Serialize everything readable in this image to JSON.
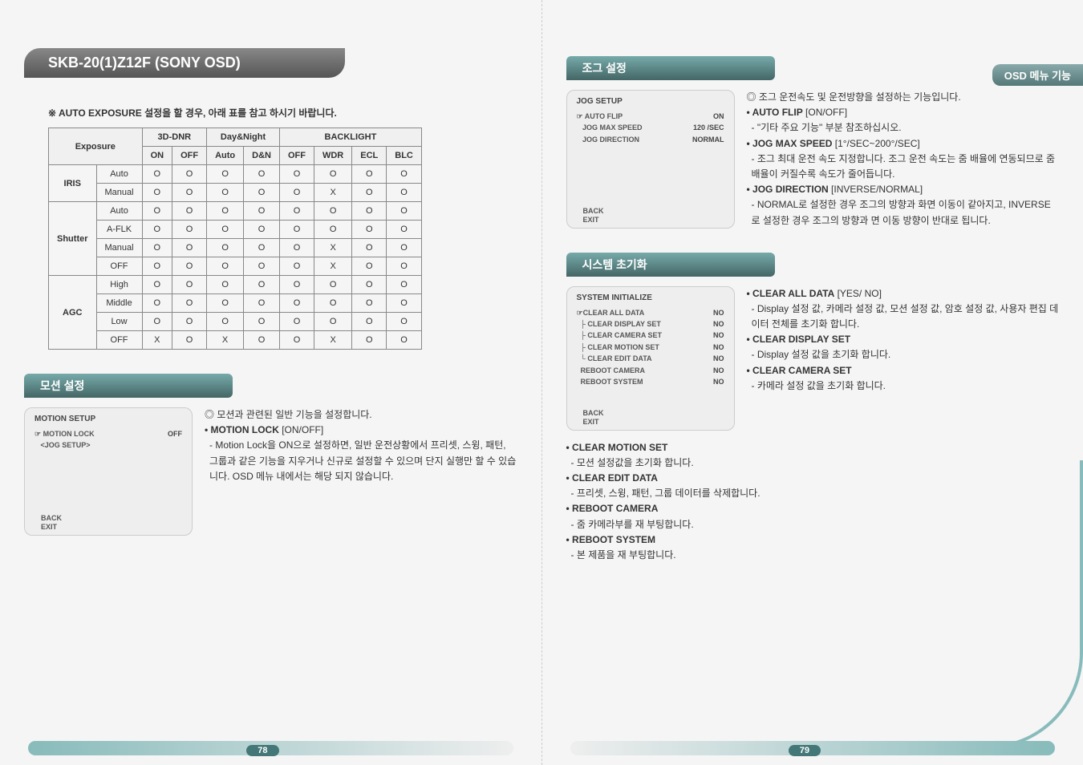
{
  "model_header": "SKB-20(1)Z12F  (SONY OSD)",
  "menu_tag": "OSD 메뉴 기능",
  "table_note": "※ AUTO EXPOSURE 설정을 할 경우, 아래 표를 참고 하시기 바랍니다.",
  "table": {
    "group_headers": [
      "3D-DNR",
      "Day&Night",
      "BACKLIGHT"
    ],
    "group_spans": [
      2,
      2,
      4
    ],
    "exposure_header": "Exposure",
    "sub_headers": [
      "ON",
      "OFF",
      "Auto",
      "D&N",
      "OFF",
      "WDR",
      "ECL",
      "BLC"
    ],
    "row_groups": [
      {
        "label": "IRIS",
        "rows": [
          {
            "k": "Auto",
            "v": [
              "O",
              "O",
              "O",
              "O",
              "O",
              "O",
              "O",
              "O"
            ]
          },
          {
            "k": "Manual",
            "v": [
              "O",
              "O",
              "O",
              "O",
              "O",
              "X",
              "O",
              "O"
            ]
          }
        ]
      },
      {
        "label": "Shutter",
        "rows": [
          {
            "k": "Auto",
            "v": [
              "O",
              "O",
              "O",
              "O",
              "O",
              "O",
              "O",
              "O"
            ]
          },
          {
            "k": "A-FLK",
            "v": [
              "O",
              "O",
              "O",
              "O",
              "O",
              "O",
              "O",
              "O"
            ]
          },
          {
            "k": "Manual",
            "v": [
              "O",
              "O",
              "O",
              "O",
              "O",
              "X",
              "O",
              "O"
            ]
          },
          {
            "k": "OFF",
            "v": [
              "O",
              "O",
              "O",
              "O",
              "O",
              "X",
              "O",
              "O"
            ]
          }
        ]
      },
      {
        "label": "AGC",
        "rows": [
          {
            "k": "High",
            "v": [
              "O",
              "O",
              "O",
              "O",
              "O",
              "O",
              "O",
              "O"
            ]
          },
          {
            "k": "Middle",
            "v": [
              "O",
              "O",
              "O",
              "O",
              "O",
              "O",
              "O",
              "O"
            ]
          },
          {
            "k": "Low",
            "v": [
              "O",
              "O",
              "O",
              "O",
              "O",
              "O",
              "O",
              "O"
            ]
          },
          {
            "k": "OFF",
            "v": [
              "X",
              "O",
              "X",
              "O",
              "O",
              "X",
              "O",
              "O"
            ]
          }
        ]
      }
    ]
  },
  "motion": {
    "title": "모션 설정",
    "osd_title": "MOTION SETUP",
    "items": [
      {
        "k": "☞ MOTION LOCK",
        "v": "OFF"
      },
      {
        "k": "   <JOG SETUP>",
        "v": ""
      }
    ],
    "back": "BACK",
    "exit": "EXIT",
    "desc_lead": "◎ 모션과 관련된 일반 기능을 설정합니다.",
    "desc_items": [
      {
        "bold": "• MOTION LOCK",
        "tail": " [ON/OFF]"
      },
      {
        "sub": " - Motion Lock을 ON으로 설정하면, 일반 운전상황에서 프리셋, 스윙, 패턴, 그룹과 같은 기능을 지우거나 신규로 설정할 수 있으며 단지 실행만 할 수 있습니다. OSD 메뉴 내에서는 해당 되지 않습니다."
      }
    ]
  },
  "jog": {
    "title": "조그 설정",
    "osd_title": "JOG SETUP",
    "items": [
      {
        "k": "☞ AUTO FLIP",
        "v": "ON"
      },
      {
        "k": "   JOG MAX SPEED",
        "v": "120 /SEC"
      },
      {
        "k": "   JOG DIRECTION",
        "v": "NORMAL"
      }
    ],
    "back": "BACK",
    "exit": "EXIT",
    "desc_lead": "◎ 조그 운전속도 및 운전방향을 설정하는 기능입니다.",
    "desc_items": [
      {
        "bold": "• AUTO FLIP",
        "tail": " [ON/OFF]"
      },
      {
        "sub": " - \"기타 주요 기능\" 부분 참조하십시오."
      },
      {
        "bold": "• JOG MAX SPEED",
        "tail": " [1°/SEC~200°/SEC]"
      },
      {
        "sub": " - 조그 최대 운전 속도 지정합니다. 조그 운전 속도는 줌 배율에 연동되므로 줌 배율이 커질수록 속도가 줄어듭니다."
      },
      {
        "bold": "• JOG DIRECTION",
        "tail": " [INVERSE/NORMAL]"
      },
      {
        "sub": " - NORMAL로 설정한 경우 조그의 방향과 화면 이동이 같아지고, INVERSE로 설정한 경우 조그의 방향과 면 이동 방향이 반대로 됩니다."
      }
    ]
  },
  "sysinit": {
    "title": "시스템 초기화",
    "osd_title": "SYSTEM INITIALIZE",
    "items": [
      {
        "k": "☞CLEAR ALL DATA",
        "v": "NO"
      },
      {
        "k": "  ├ CLEAR DISPLAY SET",
        "v": "NO"
      },
      {
        "k": "  ├ CLEAR CAMERA SET",
        "v": "NO"
      },
      {
        "k": "  ├ CLEAR MOTION SET",
        "v": "NO"
      },
      {
        "k": "  └ CLEAR EDIT DATA",
        "v": "NO"
      },
      {
        "k": "  REBOOT CAMERA",
        "v": "NO"
      },
      {
        "k": "  REBOOT SYSTEM",
        "v": "NO"
      }
    ],
    "back": "BACK",
    "exit": "EXIT",
    "right_desc": [
      {
        "bold": "• CLEAR ALL DATA",
        "tail": " [YES/ NO]"
      },
      {
        "sub": " - Display 설정 값, 카메라 설정 값, 모션 설정 값, 암호 설정 값, 사용자 편집 데이터 전체를 초기화 합니다."
      },
      {
        "bold": "• CLEAR DISPLAY SET",
        "tail": ""
      },
      {
        "sub": " - Display 설정 값을 초기화 합니다."
      },
      {
        "bold": "• CLEAR CAMERA SET",
        "tail": ""
      },
      {
        "sub": " - 카메라 설정 값을 초기화 합니다."
      }
    ],
    "below_desc": [
      {
        "bold": "• CLEAR MOTION SET",
        "tail": ""
      },
      {
        "sub": " - 모션 설정값을 초기화 합니다."
      },
      {
        "bold": "• CLEAR EDIT DATA",
        "tail": ""
      },
      {
        "sub": " - 프리셋, 스윙, 패턴, 그룹 데이터를 삭제합니다."
      },
      {
        "bold": "• REBOOT CAMERA",
        "tail": ""
      },
      {
        "sub": " - 줌 카메라부를 재 부팅합니다."
      },
      {
        "bold": "• REBOOT SYSTEM",
        "tail": ""
      },
      {
        "sub": " - 본 제품을 재 부팅합니다."
      }
    ]
  },
  "page_left": "78",
  "page_right": "79",
  "colors": {
    "header_bg": "#666",
    "section_bg": "#5a9",
    "accent": "#7aa"
  }
}
